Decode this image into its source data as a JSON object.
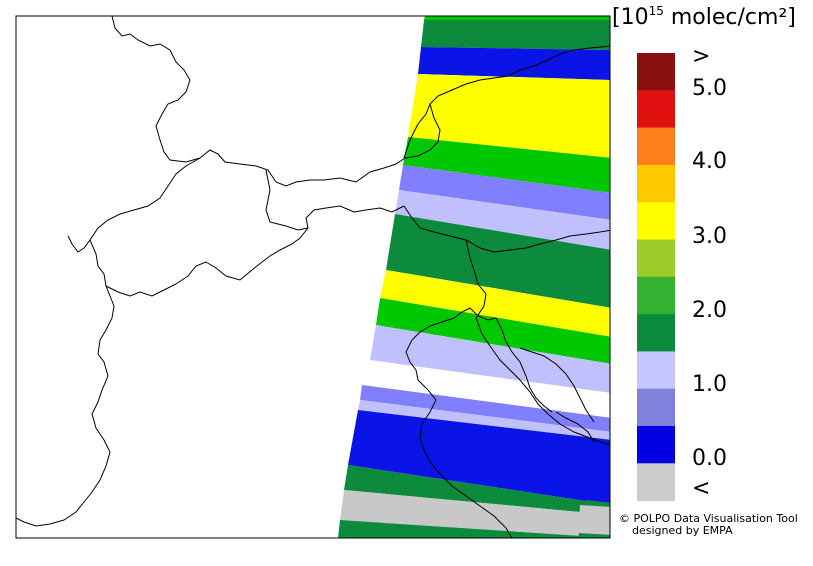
{
  "legend": {
    "unit_prefix": "10",
    "unit_exponent": "15",
    "unit_suffix": "molec/cm²",
    "ticks": [
      ">",
      "5.0",
      "4.0",
      "3.0",
      "2.0",
      "1.0",
      "0.0",
      "<"
    ],
    "colors": [
      "#8b1010",
      "#e01010",
      "#ff7f1e",
      "#ffc800",
      "#ffff00",
      "#9ccc2a",
      "#33b233",
      "#0c8b3c",
      "#c6c6ff",
      "#8080dd",
      "#0000e0",
      "#cccccc"
    ]
  },
  "credit": {
    "line1": "© POLPO Data Visualisation Tool",
    "line2": "designed by EMPA"
  },
  "swath_colors": {
    "dark_green": "#0c8b3c",
    "blue": "#0a14e6",
    "yellow": "#ffff00",
    "green": "#00c800",
    "periwinkle": "#8080ff",
    "lavender": "#c0c0ff",
    "grey": "#c8c8c8"
  }
}
